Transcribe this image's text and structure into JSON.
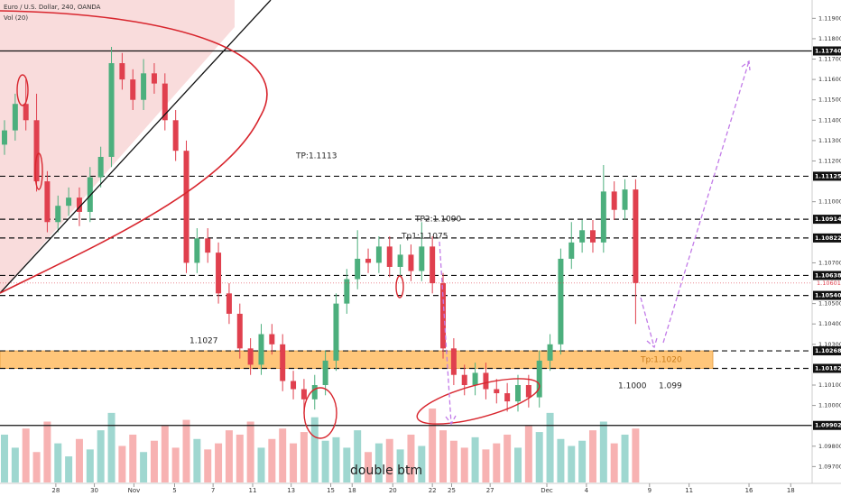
{
  "chart_data": {
    "type": "candlestick",
    "header": "Euro / U.S. Dollar, 240, OANDA",
    "indicator": "Vol (20)",
    "up_color": "#4caf7d",
    "down_color": "#e0404e",
    "volume_up_color": "#8fd1c8",
    "volume_down_color": "#f6a5a5",
    "open": [
      1.1128,
      1.1135,
      1.1148,
      1.114,
      1.111,
      1.109,
      1.1098,
      1.1102,
      1.1095,
      1.1112,
      1.1122,
      1.1168,
      1.116,
      1.115,
      1.1163,
      1.1158,
      1.114,
      1.1125,
      1.107,
      1.1082,
      1.1075,
      1.1055,
      1.1045,
      1.1028,
      1.102,
      1.1035,
      1.103,
      1.1012,
      1.1008,
      1.1003,
      1.101,
      1.1022,
      1.105,
      1.1062,
      1.1072,
      1.107,
      1.1078,
      1.1068,
      1.1074,
      1.1066,
      1.1078,
      1.106,
      1.1028,
      1.1015,
      1.101,
      1.1016,
      1.1008,
      1.1006,
      1.1002,
      1.101,
      1.1004,
      1.1022,
      1.103,
      1.1072,
      1.108,
      1.1086,
      1.108,
      1.1105,
      1.1096,
      1.1106
    ],
    "high": [
      1.114,
      1.1153,
      1.116,
      1.1153,
      1.1115,
      1.1103,
      1.1107,
      1.1107,
      1.1117,
      1.1127,
      1.1176,
      1.1173,
      1.1165,
      1.117,
      1.1168,
      1.1163,
      1.1145,
      1.113,
      1.1087,
      1.1087,
      1.108,
      1.106,
      1.105,
      1.1033,
      1.104,
      1.104,
      1.1035,
      1.1017,
      1.1013,
      1.1015,
      1.1027,
      1.1055,
      1.1067,
      1.1086,
      1.1077,
      1.1083,
      1.1083,
      1.1079,
      1.1079,
      1.109,
      1.1083,
      1.1065,
      1.1033,
      1.102,
      1.1021,
      1.1021,
      1.1013,
      1.1011,
      1.1015,
      1.1015,
      1.1027,
      1.1035,
      1.1077,
      1.109,
      1.1091,
      1.1091,
      1.1118,
      1.111,
      1.1111,
      1.1111
    ],
    "low": [
      1.1123,
      1.113,
      1.1135,
      1.1105,
      1.1085,
      1.1085,
      1.1093,
      1.1088,
      1.109,
      1.1107,
      1.1117,
      1.1155,
      1.1145,
      1.1145,
      1.1153,
      1.1135,
      1.112,
      1.1065,
      1.1065,
      1.107,
      1.105,
      1.104,
      1.1023,
      1.1015,
      1.1015,
      1.1025,
      1.1007,
      1.1003,
      1.0996,
      1.0998,
      1.1005,
      1.1017,
      1.1045,
      1.1057,
      1.1065,
      1.1065,
      1.1063,
      1.1063,
      1.1061,
      1.1061,
      1.1055,
      1.1023,
      1.101,
      1.1005,
      1.1005,
      1.1003,
      1.1001,
      1.0997,
      1.0997,
      1.0999,
      1.0999,
      1.1017,
      1.1025,
      1.1067,
      1.1075,
      1.1075,
      1.1075,
      1.1091,
      1.1091,
      1.104
    ],
    "close": [
      1.1135,
      1.1148,
      1.114,
      1.111,
      1.109,
      1.1098,
      1.1102,
      1.1095,
      1.1112,
      1.1122,
      1.1168,
      1.116,
      1.115,
      1.1163,
      1.1158,
      1.114,
      1.1125,
      1.107,
      1.1082,
      1.1075,
      1.1055,
      1.1045,
      1.1028,
      1.102,
      1.1035,
      1.103,
      1.1012,
      1.1008,
      1.1003,
      1.101,
      1.1022,
      1.105,
      1.1062,
      1.1072,
      1.107,
      1.1078,
      1.1068,
      1.1074,
      1.1066,
      1.1078,
      1.106,
      1.1028,
      1.1015,
      1.101,
      1.1016,
      1.1008,
      1.1006,
      1.1002,
      1.101,
      1.1004,
      1.1022,
      1.103,
      1.1072,
      1.108,
      1.1086,
      1.108,
      1.1105,
      1.1096,
      1.1106,
      1.10601
    ],
    "volume": [
      55,
      40,
      62,
      35,
      70,
      45,
      30,
      50,
      38,
      60,
      80,
      42,
      55,
      35,
      48,
      65,
      40,
      72,
      50,
      38,
      45,
      60,
      55,
      70,
      40,
      50,
      62,
      45,
      58,
      75,
      48,
      52,
      40,
      60,
      35,
      45,
      50,
      38,
      55,
      42,
      85,
      60,
      48,
      40,
      52,
      38,
      45,
      55,
      40,
      65,
      58,
      80,
      50,
      42,
      48,
      60,
      70,
      45,
      55,
      62
    ],
    "volume_ylim": [
      0,
      140
    ],
    "xlim": [
      -0.42,
      75.5
    ],
    "xticks": [
      {
        "value": 4.8,
        "label": "28"
      },
      {
        "value": 8.4,
        "label": "30"
      },
      {
        "value": 12.1,
        "label": "Nov"
      },
      {
        "value": 15.9,
        "label": "5"
      },
      {
        "value": 19.5,
        "label": "7"
      },
      {
        "value": 23.2,
        "label": "11"
      },
      {
        "value": 26.8,
        "label": "13"
      },
      {
        "value": 30.5,
        "label": "15"
      },
      {
        "value": 32.5,
        "label": "18"
      },
      {
        "value": 36.3,
        "label": "20"
      },
      {
        "value": 40.0,
        "label": "22"
      },
      {
        "value": 41.8,
        "label": "25"
      },
      {
        "value": 45.4,
        "label": "27"
      },
      {
        "value": 50.7,
        "label": "Dec"
      },
      {
        "value": 54.4,
        "label": "4"
      },
      {
        "value": 60.3,
        "label": "9"
      },
      {
        "value": 64.0,
        "label": "11"
      },
      {
        "value": 69.6,
        "label": "16"
      },
      {
        "value": 73.5,
        "label": "18"
      }
    ],
    "ylim": [
      1.0956,
      1.1199
    ],
    "yticks": [
      {
        "value": 1.119,
        "label": "1.11900"
      },
      {
        "value": 1.118,
        "label": "1.11800"
      },
      {
        "value": 1.117,
        "label": "1.11700"
      },
      {
        "value": 1.116,
        "label": "1.11600"
      },
      {
        "value": 1.115,
        "label": "1.11500"
      },
      {
        "value": 1.114,
        "label": "1.11400"
      },
      {
        "value": 1.113,
        "label": "1.11300"
      },
      {
        "value": 1.112,
        "label": "1.11200"
      },
      {
        "value": 1.11,
        "label": "1.11000"
      },
      {
        "value": 1.107,
        "label": "1.10700"
      },
      {
        "value": 1.105,
        "label": "1.10500"
      },
      {
        "value": 1.104,
        "label": "1.10400"
      },
      {
        "value": 1.103,
        "label": "1.10300"
      },
      {
        "value": 1.101,
        "label": "1.10100"
      },
      {
        "value": 1.1,
        "label": "1.10000"
      },
      {
        "value": 1.098,
        "label": "1.09800"
      },
      {
        "value": 1.097,
        "label": "1.09700"
      }
    ],
    "levels": [
      {
        "value": 1.1174,
        "label": "1.11740",
        "style": "solid"
      },
      {
        "value": 1.11125,
        "label": "1.11125",
        "style": "dashed"
      },
      {
        "value": 1.10914,
        "label": "1.10914",
        "style": "dashed"
      },
      {
        "value": 1.10822,
        "label": "1.10822",
        "style": "dashed"
      },
      {
        "value": 1.10638,
        "label": "1.10638",
        "style": "dashed"
      },
      {
        "value": 1.1054,
        "label": "1.10540",
        "style": "dashed"
      },
      {
        "value": 1.10268,
        "label": "1.10268",
        "style": "dashed"
      },
      {
        "value": 1.10182,
        "label": "1.10182",
        "style": "dashed"
      },
      {
        "value": 1.09902,
        "label": "1.09902",
        "style": "solid"
      }
    ],
    "zone": {
      "low": 1.10182,
      "high": 1.10268,
      "color": "#ffc67a"
    },
    "last_price": {
      "value": 1.10601,
      "label": "1.10601",
      "color": "#e0404e"
    },
    "annotations": [
      "TP:1.1113",
      "TP2:1.1090",
      "Tp1:1.1075",
      "1.1027",
      "Tp:1.1020",
      "1.1000",
      "1.099",
      "double btm"
    ]
  }
}
